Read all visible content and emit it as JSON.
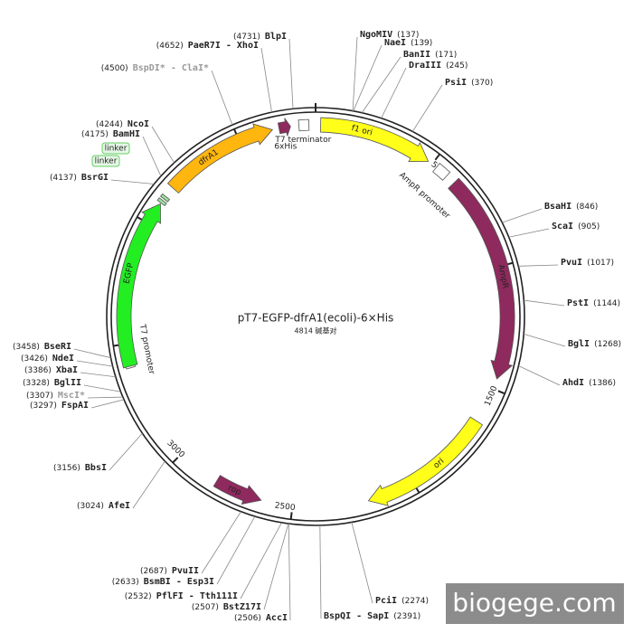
{
  "title": "pT7-EGFP-dfrA1(ecoli)-6×His",
  "length": {
    "value": 4814,
    "label": "4814 碱基对"
  },
  "ticks": [
    500,
    1000,
    1500,
    2000,
    2500,
    3000,
    3500,
    4000,
    4500
  ],
  "sites": [
    {
      "name": "NgoMIV",
      "position": {
        "value": 137,
        "label": "(137)"
      }
    },
    {
      "name": "NaeI",
      "position": {
        "value": 139,
        "label": "(139)"
      }
    },
    {
      "name": "BanII",
      "position": {
        "value": 171,
        "label": "(171)"
      }
    },
    {
      "name": "DraIII",
      "position": {
        "value": 245,
        "label": "(245)"
      }
    },
    {
      "name": "PsiI",
      "position": {
        "value": 370,
        "label": "(370)"
      }
    },
    {
      "name": "BsaHI",
      "position": {
        "value": 846,
        "label": "(846)"
      }
    },
    {
      "name": "ScaI",
      "position": {
        "value": 905,
        "label": "(905)"
      }
    },
    {
      "name": "PvuI",
      "position": {
        "value": 1017,
        "label": "(1017)"
      }
    },
    {
      "name": "PstI",
      "position": {
        "value": 1144,
        "label": "(1144)"
      }
    },
    {
      "name": "BglI",
      "position": {
        "value": 1268,
        "label": "(1268)"
      }
    },
    {
      "name": "AhdI",
      "position": {
        "value": 1386,
        "label": "(1386)"
      }
    },
    {
      "name": "PciI",
      "position": {
        "value": 2274,
        "label": "(2274)"
      }
    },
    {
      "name": "BspQI - SapI",
      "position": {
        "value": 2391,
        "label": "(2391)"
      }
    },
    {
      "name": "AccI",
      "position": {
        "value": 2506,
        "label": "(2506)"
      }
    },
    {
      "name": "BstZ17I",
      "position": {
        "value": 2507,
        "label": "(2507)"
      }
    },
    {
      "name": "PflFI - Tth111I",
      "position": {
        "value": 2532,
        "label": "(2532)"
      }
    },
    {
      "name": "BsmBI - Esp3I",
      "position": {
        "value": 2633,
        "label": "(2633)"
      }
    },
    {
      "name": "PvuII",
      "position": {
        "value": 2687,
        "label": "(2687)"
      }
    },
    {
      "name": "AfeI",
      "position": {
        "value": 3024,
        "label": "(3024)"
      }
    },
    {
      "name": "BbsI",
      "position": {
        "value": 3156,
        "label": "(3156)"
      }
    },
    {
      "name": "FspAI",
      "position": {
        "value": 3297,
        "label": "(3297)"
      }
    },
    {
      "name": "MscI*",
      "position": {
        "value": 3307,
        "label": "(3307)"
      }
    },
    {
      "name": "BglII",
      "position": {
        "value": 3328,
        "label": "(3328)"
      }
    },
    {
      "name": "XbaI",
      "position": {
        "value": 3386,
        "label": "(3386)"
      }
    },
    {
      "name": "NdeI",
      "position": {
        "value": 3426,
        "label": "(3426)"
      }
    },
    {
      "name": "BseRI",
      "position": {
        "value": 3458,
        "label": "(3458)"
      }
    },
    {
      "name": "BsrGI",
      "position": {
        "value": 4137,
        "label": "(4137)"
      }
    },
    {
      "name": "BamHI",
      "position": {
        "value": 4175,
        "label": "(4175)"
      }
    },
    {
      "name": "NcoI",
      "position": {
        "value": 4244,
        "label": "(4244)"
      }
    },
    {
      "name": "BspDI* - ClaI*",
      "position": {
        "value": 4500,
        "label": "(4500)"
      }
    },
    {
      "name": "PaeR7I - XhoI",
      "position": {
        "value": 4652,
        "label": "(4652)"
      }
    },
    {
      "name": "BlpI",
      "position": {
        "value": 4731,
        "label": "(4731)"
      }
    }
  ],
  "features": [
    {
      "label": "dfrA1",
      "color": "#ffb60f"
    },
    {
      "label": "6xHis",
      "color": "#8e2a5e"
    },
    {
      "label": "T7 terminator",
      "color": "#ffffff"
    },
    {
      "label": "f1 ori",
      "color": "#ffff1a"
    },
    {
      "label": "AmpR promoter",
      "color": "#ffffff"
    },
    {
      "label": "AmpR",
      "color": "#8e2a5e"
    },
    {
      "label": "ori",
      "color": "#ffff1a"
    },
    {
      "label": "rop",
      "color": "#8e2a5e"
    },
    {
      "label": "T7 promoter",
      "color": "#ffffff"
    },
    {
      "label": "EGFP",
      "color": "#22ee22"
    },
    {
      "label": "linker",
      "color": "#9be29b"
    },
    {
      "label": "linker",
      "color": "#9be29b"
    }
  ],
  "watermark": "biogege.com"
}
